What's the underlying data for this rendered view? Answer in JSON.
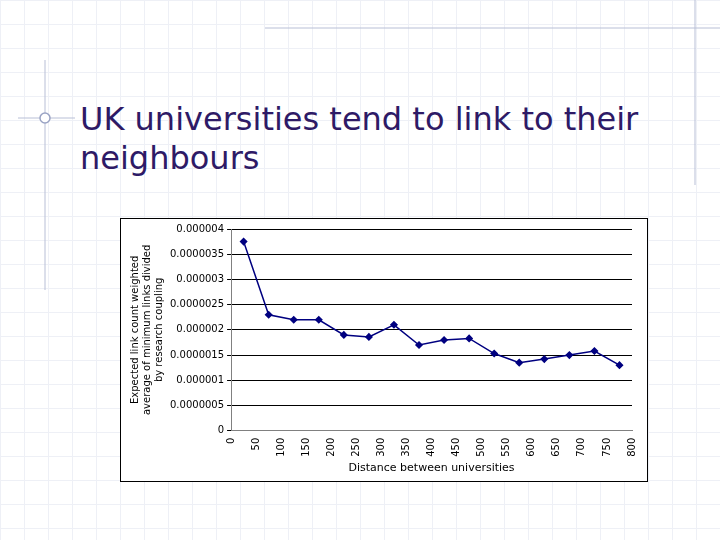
{
  "chart_data": {
    "type": "line",
    "title": "UK universities tend to link to their neighbours",
    "xlabel": "Distance between universities",
    "ylabel": [
      "Expected link count weighted",
      "average of minimum links divided",
      "by research coupling"
    ],
    "x": [
      25,
      75,
      125,
      175,
      225,
      275,
      325,
      375,
      425,
      475,
      525,
      575,
      625,
      675,
      725,
      775
    ],
    "values": [
      3.75e-06,
      2.3e-06,
      2.2e-06,
      2.2e-06,
      1.9e-06,
      1.86e-06,
      2.1e-06,
      1.7e-06,
      1.8e-06,
      1.83e-06,
      1.53e-06,
      1.35e-06,
      1.42e-06,
      1.5e-06,
      1.58e-06,
      1.3e-06
    ],
    "color": "#000080",
    "marker": "diamond",
    "xlim": [
      0,
      800
    ],
    "xticks": [
      0,
      50,
      100,
      150,
      200,
      250,
      300,
      350,
      400,
      450,
      500,
      550,
      600,
      650,
      700,
      750,
      800
    ],
    "ylim": [
      0,
      4e-06
    ],
    "yticks": [
      0,
      5e-07,
      1e-06,
      1.5e-06,
      2e-06,
      2.5e-06,
      3e-06,
      3.5e-06,
      4e-06
    ],
    "grid": true
  }
}
